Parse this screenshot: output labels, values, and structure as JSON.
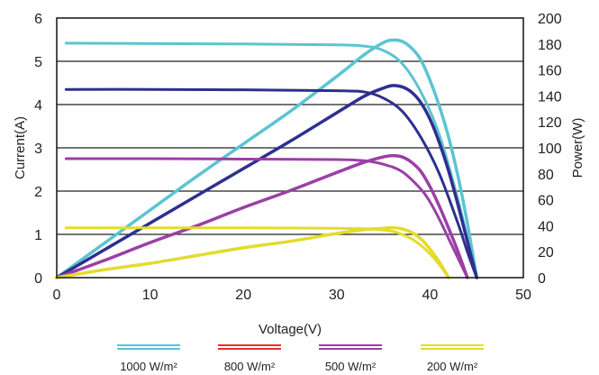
{
  "chart_data": {
    "type": "line",
    "title": "",
    "xlabel": "Voltage(V)",
    "ylabel_left": "Current(A)",
    "ylabel_right": "Power(W)",
    "xlim": [
      0,
      50
    ],
    "ylim_left": [
      0,
      6
    ],
    "ylim_right": [
      0,
      200
    ],
    "x_ticks": [
      "0",
      "10",
      "20",
      "30",
      "40",
      "50"
    ],
    "y_ticks_left": [
      "0",
      "1",
      "2",
      "3",
      "4",
      "5",
      "6"
    ],
    "y_ticks_right": [
      "0",
      "20",
      "40",
      "60",
      "80",
      "100",
      "120",
      "140",
      "160",
      "180",
      "200"
    ],
    "grid": "horizontal",
    "legend_position": "bottom",
    "legend": [
      {
        "label": "1000 W/m²",
        "color": "#5bc4d2"
      },
      {
        "label": "800 W/m²",
        "color": "#e0342f"
      },
      {
        "label": "500 W/m²",
        "color": "#9b3fa6"
      },
      {
        "label": "200 W/m²",
        "color": "#e3dc2c"
      }
    ],
    "series": [
      {
        "color": "#5bc4d2",
        "iv_curve": {
          "axis": "left",
          "x": [
            1,
            10,
            20,
            30,
            33,
            35,
            37,
            39,
            41,
            43,
            44,
            45
          ],
          "y": [
            5.42,
            5.41,
            5.4,
            5.38,
            5.35,
            5.25,
            4.95,
            4.3,
            3.3,
            1.8,
            0.9,
            0.0
          ]
        },
        "pv_curve": {
          "axis": "right",
          "x": [
            0,
            5,
            10,
            15,
            20,
            25,
            30,
            33,
            35,
            36,
            37,
            38,
            39,
            40,
            41,
            42,
            43,
            44,
            45
          ],
          "y": [
            0,
            26,
            52,
            78,
            103,
            128,
            155,
            172,
            181,
            183,
            182,
            177,
            168,
            152,
            132,
            108,
            78,
            42,
            0
          ]
        }
      },
      {
        "color": "#2e2f8f",
        "iv_curve": {
          "axis": "left",
          "x": [
            1,
            10,
            20,
            30,
            33,
            35,
            37,
            39,
            41,
            43,
            44,
            45
          ],
          "y": [
            4.35,
            4.35,
            4.34,
            4.32,
            4.29,
            4.15,
            3.85,
            3.25,
            2.4,
            1.25,
            0.6,
            0.0
          ]
        },
        "pv_curve": {
          "axis": "right",
          "x": [
            0,
            5,
            10,
            15,
            20,
            25,
            30,
            33,
            35,
            36,
            37,
            38,
            39,
            40,
            41,
            42,
            43,
            44,
            45
          ],
          "y": [
            0,
            21,
            42,
            63,
            84,
            105,
            127,
            140,
            146,
            148,
            147,
            143,
            135,
            122,
            104,
            82,
            56,
            28,
            0
          ]
        }
      },
      {
        "color": "#9b3fa6",
        "iv_curve": {
          "axis": "left",
          "x": [
            1,
            10,
            20,
            30,
            33,
            35,
            37,
            39,
            40,
            41,
            42,
            43,
            44
          ],
          "y": [
            2.75,
            2.75,
            2.74,
            2.73,
            2.7,
            2.62,
            2.45,
            2.05,
            1.75,
            1.35,
            0.9,
            0.45,
            0.0
          ]
        },
        "pv_curve": {
          "axis": "right",
          "x": [
            0,
            5,
            10,
            15,
            20,
            25,
            30,
            33,
            35,
            36,
            37,
            38,
            39,
            40,
            41,
            42,
            43,
            44
          ],
          "y": [
            0,
            13,
            27,
            40,
            54,
            67,
            81,
            89,
            93,
            94,
            93,
            89,
            82,
            70,
            55,
            38,
            20,
            0
          ]
        }
      },
      {
        "color": "#e3dc2c",
        "iv_curve": {
          "axis": "left",
          "x": [
            1,
            10,
            20,
            30,
            33,
            35,
            36,
            37,
            38,
            39,
            40,
            41,
            42
          ],
          "y": [
            1.15,
            1.15,
            1.15,
            1.14,
            1.13,
            1.1,
            1.07,
            1.0,
            0.9,
            0.75,
            0.55,
            0.3,
            0.0
          ]
        },
        "pv_curve": {
          "axis": "right",
          "x": [
            0,
            5,
            10,
            15,
            20,
            25,
            30,
            33,
            35,
            36,
            37,
            38,
            39,
            40,
            41,
            42
          ],
          "y": [
            0,
            6,
            11,
            17,
            23,
            28,
            34,
            37,
            38,
            38.5,
            37.5,
            35,
            30,
            22,
            12,
            0
          ]
        }
      }
    ]
  }
}
